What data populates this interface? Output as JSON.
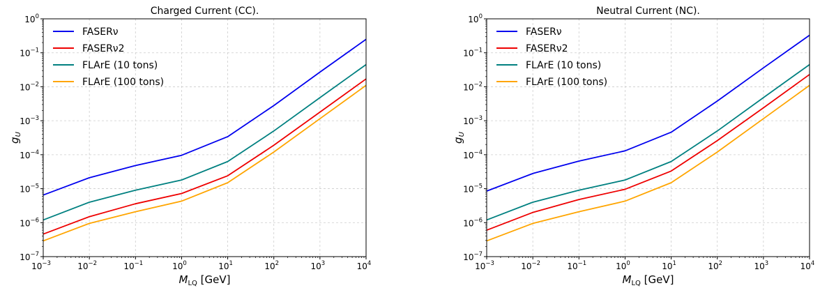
{
  "chart_data": [
    {
      "type": "line",
      "title": "Charged Current (CC).",
      "xlabel": "M_LQ [GeV]",
      "xlabel_main": "M",
      "xlabel_sub": "LQ",
      "xlabel_unit": " [GeV]",
      "ylabel": "g_U",
      "ylabel_main": "g",
      "ylabel_sub": "U",
      "xscale": "log",
      "yscale": "log",
      "xlim": [
        0.001,
        10000
      ],
      "ylim": [
        1e-07,
        1
      ],
      "x_tick_exponents": [
        -3,
        -2,
        -1,
        0,
        1,
        2,
        3,
        4
      ],
      "y_tick_exponents": [
        -7,
        -6,
        -5,
        -4,
        -3,
        -2,
        -1,
        0
      ],
      "grid": true,
      "legend_position": "top-left",
      "x": [
        0.001,
        0.01,
        0.1,
        1,
        10,
        100,
        1000,
        10000
      ],
      "series": [
        {
          "name": "FASERν",
          "color": "#0000ee",
          "values": [
            6.5e-06,
            2.1e-05,
            4.8e-05,
            9.6e-05,
            0.00034,
            0.0028,
            0.027,
            0.25
          ]
        },
        {
          "name": "FASERν2",
          "color": "#ee0000",
          "values": [
            4.6e-07,
            1.5e-06,
            3.6e-06,
            7.2e-06,
            2.4e-05,
            0.00019,
            0.0018,
            0.017
          ]
        },
        {
          "name": "FLArE (10 tons)",
          "color": "#008080",
          "values": [
            1.2e-06,
            4e-06,
            9e-06,
            1.8e-05,
            6.3e-05,
            0.0005,
            0.0048,
            0.045
          ]
        },
        {
          "name": "FLArE (100 tons)",
          "color": "#ffa500",
          "values": [
            2.9e-07,
            9.5e-07,
            2.1e-06,
            4.3e-06,
            1.5e-05,
            0.00012,
            0.00115,
            0.011
          ]
        }
      ]
    },
    {
      "type": "line",
      "title": "Neutral Current (NC).",
      "xlabel": "M_LQ [GeV]",
      "xlabel_main": "M",
      "xlabel_sub": "LQ",
      "xlabel_unit": " [GeV]",
      "ylabel": "g_U",
      "ylabel_main": "g",
      "ylabel_sub": "U",
      "xscale": "log",
      "yscale": "log",
      "xlim": [
        0.001,
        10000
      ],
      "ylim": [
        1e-07,
        1
      ],
      "x_tick_exponents": [
        -3,
        -2,
        -1,
        0,
        1,
        2,
        3,
        4
      ],
      "y_tick_exponents": [
        -7,
        -6,
        -5,
        -4,
        -3,
        -2,
        -1,
        0
      ],
      "grid": true,
      "legend_position": "top-left",
      "x": [
        0.001,
        0.01,
        0.1,
        1,
        10,
        100,
        1000,
        10000
      ],
      "series": [
        {
          "name": "FASERν",
          "color": "#0000ee",
          "values": [
            8.5e-06,
            2.8e-05,
            6.5e-05,
            0.00013,
            0.00046,
            0.0038,
            0.036,
            0.33
          ]
        },
        {
          "name": "FASERν2",
          "color": "#ee0000",
          "values": [
            6e-07,
            2e-06,
            4.8e-06,
            9.6e-06,
            3.3e-05,
            0.00026,
            0.0024,
            0.023
          ]
        },
        {
          "name": "FLArE (10 tons)",
          "color": "#008080",
          "values": [
            1.2e-06,
            4e-06,
            9e-06,
            1.8e-05,
            6.3e-05,
            0.0005,
            0.0048,
            0.045
          ]
        },
        {
          "name": "FLArE (100 tons)",
          "color": "#ffa500",
          "values": [
            2.9e-07,
            9.5e-07,
            2.1e-06,
            4.3e-06,
            1.5e-05,
            0.00012,
            0.00115,
            0.011
          ]
        }
      ]
    }
  ]
}
